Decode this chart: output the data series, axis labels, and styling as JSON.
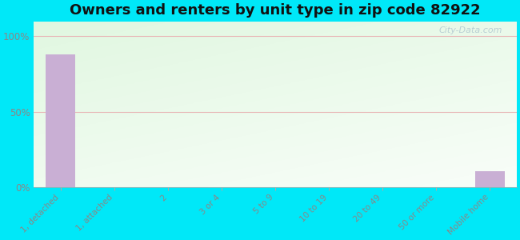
{
  "title": "Owners and renters by unit type in zip code 82922",
  "categories": [
    "1, detached",
    "1, attached",
    "2",
    "3 or 4",
    "5 to 9",
    "10 to 19",
    "20 to 49",
    "50 or more",
    "Mobile home"
  ],
  "values": [
    88,
    0,
    0,
    0,
    0,
    0,
    0,
    0,
    11
  ],
  "bar_color": "#c9afd4",
  "yticks": [
    0,
    50,
    100
  ],
  "ytick_labels": [
    "0%",
    "50%",
    "100%"
  ],
  "ylim": [
    0,
    110
  ],
  "bg_outer": "#00e8f8",
  "title_fontsize": 13,
  "watermark": "City-Data.com",
  "grid_color": "#e8b8b8",
  "tick_label_color": "#888888",
  "title_color": "#111111"
}
